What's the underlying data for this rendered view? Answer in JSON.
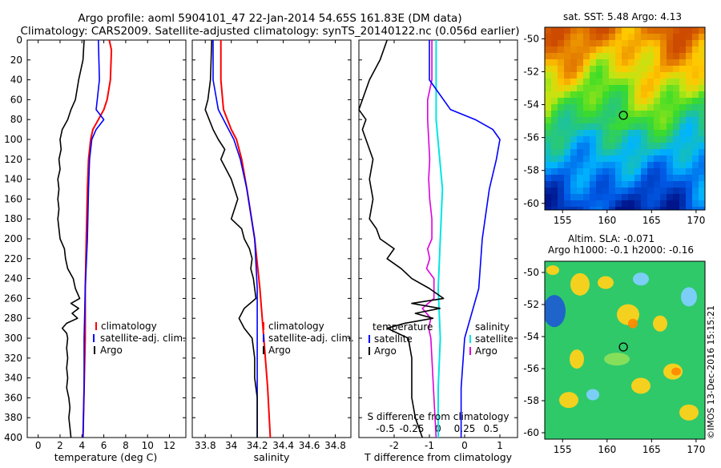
{
  "header": {
    "line1": "Argo profile: aoml 5904101_47 22-Jan-2014 54.65S 161.83E (DM data)",
    "line2": "Climatology: CARS2009. Satellite-adjusted climatology: synTS_20140122.nc (0.056d earlier)"
  },
  "colors": {
    "climatology": "#ff0000",
    "satellite": "#0000ff",
    "argo": "#000000",
    "sat_salinity": "#00e5e5",
    "argo_salinity": "#dd00dd"
  },
  "map_top": {
    "title": "sat. SST: 5.48 Argo: 4.13",
    "lon_ticks": [
      "155",
      "160",
      "165",
      "170"
    ],
    "lat_ticks": [
      "-50",
      "-52",
      "-54",
      "-56",
      "-58",
      "-60"
    ],
    "float_lon": 161.83,
    "float_lat": -54.65
  },
  "map_bottom": {
    "title1": "Altim. SLA: -0.071",
    "title2": "Argo h1000: -0.1 h2000: -0.16",
    "lon_ticks": [
      "155",
      "160",
      "165",
      "170"
    ],
    "lat_ticks": [
      "-50",
      "-52",
      "-54",
      "-56",
      "-58",
      "-60"
    ],
    "float_lon": 161.83,
    "float_lat": -54.65
  },
  "watermark": "©IMOS 13-Dec-2016 15:15:21",
  "chart_data": [
    {
      "type": "line",
      "title": "",
      "xlabel": "temperature (deg C)",
      "ylabel": "",
      "xlim": [
        -1,
        13.5
      ],
      "ylim": [
        400,
        0
      ],
      "x_ticks": [
        "0",
        "2",
        "4",
        "6",
        "8",
        "10",
        "12"
      ],
      "y_ticks": [
        "0",
        "20",
        "40",
        "60",
        "80",
        "100",
        "120",
        "140",
        "160",
        "180",
        "200",
        "220",
        "240",
        "260",
        "280",
        "300",
        "320",
        "340",
        "360",
        "380",
        "400"
      ],
      "legend": [
        "climatology",
        "satellite-adj. clim.",
        "Argo"
      ],
      "series": [
        {
          "name": "climatology",
          "depth": [
            0,
            10,
            40,
            60,
            70,
            80,
            90,
            100,
            120,
            150,
            200,
            250,
            300,
            350,
            400
          ],
          "values": [
            6.5,
            6.7,
            6.6,
            6.3,
            6.0,
            5.5,
            5.0,
            4.8,
            4.6,
            4.5,
            4.4,
            4.3,
            4.3,
            4.2,
            4.1
          ]
        },
        {
          "name": "satellite-adj. clim.",
          "depth": [
            0,
            40,
            60,
            70,
            80,
            90,
            100,
            120,
            150,
            200,
            250,
            300,
            350,
            400
          ],
          "values": [
            5.5,
            5.6,
            5.4,
            5.3,
            6.0,
            5.3,
            4.9,
            4.7,
            4.6,
            4.5,
            4.3,
            4.2,
            4.2,
            4.1
          ]
        },
        {
          "name": "Argo",
          "depth": [
            0,
            20,
            40,
            60,
            70,
            80,
            90,
            100,
            110,
            120,
            130,
            140,
            150,
            160,
            170,
            180,
            190,
            200,
            210,
            220,
            230,
            240,
            250,
            260,
            265,
            270,
            275,
            280,
            285,
            290,
            295,
            300,
            310,
            320,
            330,
            340,
            350,
            360,
            370,
            380,
            390,
            400
          ],
          "values": [
            4.2,
            4.1,
            3.7,
            3.4,
            3.0,
            2.7,
            2.2,
            2.0,
            2.1,
            1.9,
            2.0,
            1.8,
            1.9,
            1.8,
            1.9,
            1.8,
            1.9,
            2.0,
            2.4,
            2.5,
            2.7,
            3.2,
            3.4,
            3.8,
            3.0,
            3.7,
            3.1,
            3.6,
            2.6,
            2.2,
            2.6,
            2.7,
            2.6,
            2.7,
            2.6,
            2.7,
            2.6,
            2.8,
            2.9,
            2.8,
            2.9,
            3.0
          ]
        }
      ]
    },
    {
      "type": "line",
      "title": "",
      "xlabel": "salinity",
      "ylabel": "",
      "xlim": [
        33.7,
        34.92
      ],
      "ylim": [
        400,
        0
      ],
      "x_ticks": [
        "33.8",
        "34",
        "34.2",
        "34.4",
        "34.6",
        "34.8"
      ],
      "legend": [
        "climatology",
        "satellite-adj. clim.",
        "Argo"
      ],
      "series": [
        {
          "name": "climatology",
          "depth": [
            0,
            40,
            70,
            90,
            100,
            120,
            150,
            200,
            250,
            300,
            350,
            400
          ],
          "values": [
            33.92,
            33.92,
            33.94,
            34.0,
            34.04,
            34.08,
            34.12,
            34.18,
            34.22,
            34.25,
            34.28,
            34.3
          ]
        },
        {
          "name": "satellite-adj. clim.",
          "depth": [
            0,
            40,
            70,
            90,
            100,
            120,
            150,
            200,
            250,
            300,
            350,
            400
          ],
          "values": [
            33.86,
            33.86,
            33.9,
            33.98,
            34.02,
            34.07,
            34.12,
            34.18,
            34.2,
            34.2,
            34.2,
            34.2
          ]
        },
        {
          "name": "Argo",
          "depth": [
            0,
            40,
            60,
            70,
            80,
            90,
            100,
            110,
            120,
            140,
            160,
            180,
            190,
            200,
            210,
            220,
            230,
            240,
            250,
            260,
            270,
            280,
            290,
            300,
            320,
            340,
            360,
            380,
            400
          ],
          "values": [
            33.85,
            33.84,
            33.82,
            33.8,
            33.83,
            33.86,
            33.9,
            33.95,
            33.92,
            34.0,
            34.05,
            34.0,
            34.08,
            34.1,
            34.14,
            34.16,
            34.15,
            34.17,
            34.18,
            34.19,
            34.1,
            34.06,
            34.1,
            34.16,
            34.18,
            34.18,
            34.2,
            34.2,
            34.2
          ]
        }
      ]
    },
    {
      "type": "line",
      "title": "",
      "xlabel": "T difference from climatology",
      "top_axis_label": "S difference from climatology",
      "xlim": [
        -3,
        1.5
      ],
      "ylim": [
        400,
        0
      ],
      "x_ticks": [
        "-2",
        "-1",
        "0",
        "1"
      ],
      "top_ticks": [
        "-0.5",
        "-0.25",
        "0",
        "0.25",
        "0.5"
      ],
      "legend_left_title": "temperature",
      "legend_right_title": "salinity",
      "legend": [
        "satellite",
        "Argo",
        "satellite",
        "Argo"
      ],
      "series": [
        {
          "name": "T satellite",
          "depth": [
            0,
            40,
            70,
            80,
            90,
            100,
            120,
            150,
            200,
            250,
            300,
            350,
            400
          ],
          "values": [
            -1.0,
            -1.0,
            -0.4,
            0.3,
            0.8,
            1.0,
            0.9,
            0.7,
            0.5,
            0.4,
            0.0,
            -0.1,
            -0.1
          ]
        },
        {
          "name": "T Argo",
          "depth": [
            0,
            20,
            40,
            60,
            70,
            80,
            90,
            100,
            110,
            120,
            140,
            160,
            180,
            190,
            200,
            210,
            220,
            230,
            240,
            250,
            260,
            265,
            270,
            275,
            280,
            285,
            290,
            300,
            320,
            340,
            360,
            380,
            400
          ],
          "values": [
            -2.2,
            -2.4,
            -2.7,
            -2.9,
            -3.0,
            -2.8,
            -2.9,
            -2.8,
            -2.7,
            -2.6,
            -2.7,
            -2.6,
            -2.7,
            -2.5,
            -2.4,
            -2.0,
            -2.2,
            -1.8,
            -1.5,
            -1.0,
            -0.6,
            -1.5,
            -0.7,
            -1.4,
            -0.9,
            -1.7,
            -2.2,
            -1.6,
            -1.5,
            -1.5,
            -1.5,
            -1.4,
            -1.2
          ]
        },
        {
          "name": "S satellite",
          "depth": [
            0,
            80,
            150,
            200,
            250,
            300,
            350,
            400
          ],
          "values": [
            -0.02,
            -0.02,
            0.04,
            0.02,
            0.0,
            0.02,
            0.0,
            0.0
          ]
        },
        {
          "name": "S Argo",
          "depth": [
            0,
            40,
            60,
            80,
            100,
            120,
            140,
            160,
            180,
            200,
            210,
            220,
            230,
            240,
            250,
            260,
            270,
            280,
            290,
            300,
            320,
            340,
            360,
            380,
            400
          ],
          "values": [
            -0.06,
            -0.06,
            -0.1,
            -0.1,
            -0.09,
            -0.08,
            -0.09,
            -0.08,
            -0.06,
            -0.06,
            -0.1,
            -0.08,
            -0.11,
            -0.04,
            -0.04,
            -0.04,
            -0.15,
            -0.07,
            -0.09,
            -0.07,
            -0.06,
            -0.05,
            -0.04,
            -0.03,
            -0.02
          ]
        }
      ]
    }
  ],
  "panel_labels": {
    "legend_climatology": "climatology",
    "legend_satellite_adj": "satellite-adj. clim.",
    "legend_argo": "Argo",
    "legend_satellite": "satellite",
    "legend_temperature": "temperature",
    "legend_salinity": "salinity"
  }
}
